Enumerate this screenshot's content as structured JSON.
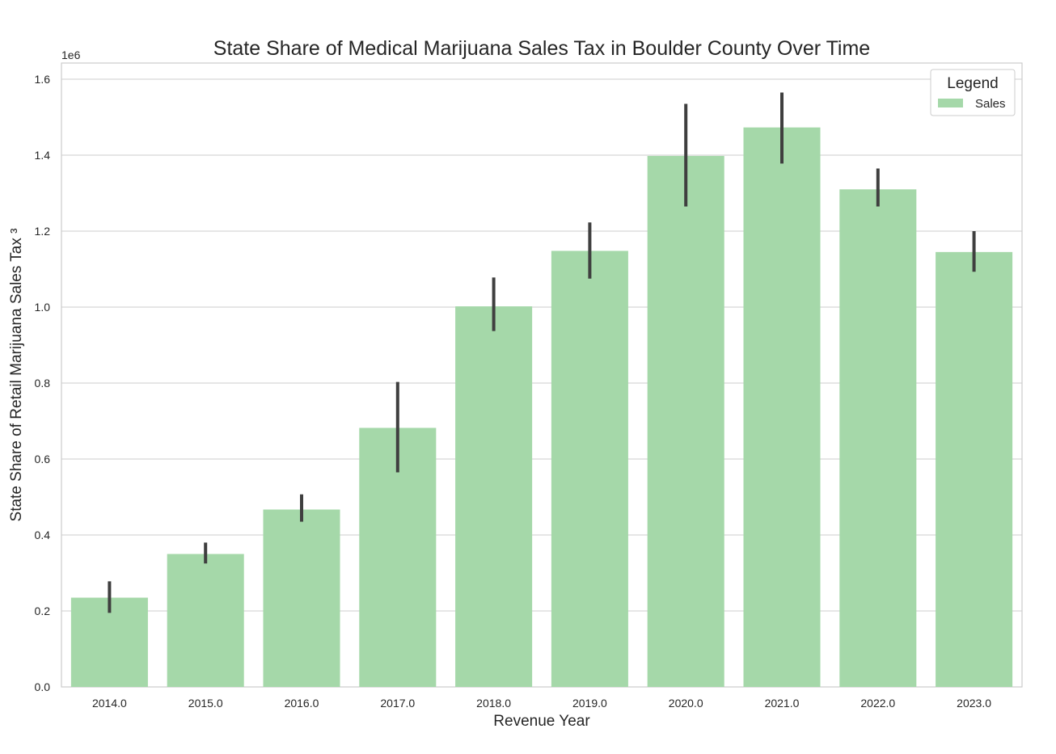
{
  "chart_data": {
    "type": "bar",
    "title": "State Share of Medical Marijuana Sales Tax in Boulder County Over Time",
    "xlabel": "Revenue Year",
    "ylabel": "State Share of Retail Marijuana Sales Tax ³",
    "y_multiplier_label": "1e6",
    "ylim": [
      0,
      1.6
    ],
    "yticks": [
      "0.0",
      "0.2",
      "0.4",
      "0.6",
      "0.8",
      "1.0",
      "1.2",
      "1.4",
      "1.6"
    ],
    "grid": true,
    "legend": {
      "title": "Legend",
      "placement": "top-right",
      "entries": [
        "Sales"
      ]
    },
    "categories": [
      "2014.0",
      "2015.0",
      "2016.0",
      "2017.0",
      "2018.0",
      "2019.0",
      "2020.0",
      "2021.0",
      "2022.0",
      "2023.0"
    ],
    "series": [
      {
        "name": "Sales",
        "color": "#a5d8a9",
        "values": [
          0.235,
          0.35,
          0.467,
          0.682,
          1.002,
          1.148,
          1.398,
          1.473,
          1.31,
          1.145
        ],
        "error_low": [
          0.195,
          0.325,
          0.435,
          0.565,
          0.937,
          1.075,
          1.265,
          1.378,
          1.265,
          1.093
        ],
        "error_high": [
          0.278,
          0.38,
          0.507,
          0.803,
          1.078,
          1.223,
          1.535,
          1.565,
          1.365,
          1.2
        ]
      }
    ],
    "errorbar_color": "#3f3f3f"
  }
}
